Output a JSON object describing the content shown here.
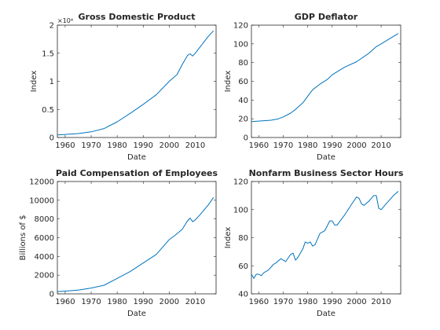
{
  "chart_data": [
    {
      "type": "line",
      "title": "Gross Domestic Product",
      "xlabel": "Date",
      "ylabel": "Index",
      "y_exponent_label": "×10⁴",
      "xlim": [
        1957,
        2018
      ],
      "ylim": [
        0,
        2
      ],
      "xticks": [
        1960,
        1970,
        1980,
        1990,
        2000,
        2010
      ],
      "yticks": [
        0,
        0.5,
        1,
        1.5,
        2
      ],
      "ytick_labels": [
        "0",
        "0.5",
        "1",
        "1.5",
        "2"
      ],
      "color": "#0072bd",
      "series": [
        {
          "x": [
            1957,
            1960,
            1965,
            1970,
            1975,
            1980,
            1985,
            1990,
            1995,
            2000,
            2003,
            2005,
            2007,
            2008,
            2009,
            2010,
            2012,
            2015,
            2017
          ],
          "y": [
            0.045,
            0.055,
            0.07,
            0.1,
            0.16,
            0.28,
            0.43,
            0.59,
            0.76,
            1.0,
            1.12,
            1.3,
            1.46,
            1.49,
            1.45,
            1.5,
            1.62,
            1.8,
            1.9
          ]
        }
      ]
    },
    {
      "type": "line",
      "title": "GDP Deflator",
      "xlabel": "Date",
      "ylabel": "Index",
      "xlim": [
        1957,
        2018
      ],
      "ylim": [
        0,
        120
      ],
      "xticks": [
        1960,
        1970,
        1980,
        1990,
        2000,
        2010
      ],
      "yticks": [
        0,
        20,
        40,
        60,
        80,
        100,
        120
      ],
      "ytick_labels": [
        "0",
        "20",
        "40",
        "60",
        "80",
        "100",
        "120"
      ],
      "color": "#0072bd",
      "series": [
        {
          "x": [
            1957,
            1960,
            1965,
            1968,
            1970,
            1973,
            1975,
            1978,
            1980,
            1982,
            1985,
            1988,
            1990,
            1995,
            2000,
            2005,
            2008,
            2010,
            2015,
            2017
          ],
          "y": [
            17,
            17.5,
            18.5,
            20,
            22,
            26,
            30,
            37,
            44,
            51,
            57,
            62,
            67,
            75,
            81,
            90,
            97,
            100,
            108,
            111
          ]
        }
      ]
    },
    {
      "type": "line",
      "title": "Paid Compensation of Employees",
      "xlabel": "Date",
      "ylabel": "Billions of $",
      "xlim": [
        1957,
        2018
      ],
      "ylim": [
        0,
        12000
      ],
      "xticks": [
        1960,
        1970,
        1980,
        1990,
        2000,
        2010
      ],
      "yticks": [
        0,
        2000,
        4000,
        6000,
        8000,
        10000,
        12000
      ],
      "ytick_labels": [
        "0",
        "2000",
        "4000",
        "6000",
        "8000",
        "10000",
        "12000"
      ],
      "color": "#0072bd",
      "series": [
        {
          "x": [
            1957,
            1960,
            1965,
            1970,
            1975,
            1980,
            1985,
            1990,
            1995,
            2000,
            2002,
            2005,
            2007,
            2008,
            2009,
            2010,
            2012,
            2015,
            2017
          ],
          "y": [
            240,
            290,
            400,
            620,
            920,
            1650,
            2380,
            3300,
            4200,
            5800,
            6200,
            6900,
            7800,
            8100,
            7700,
            7900,
            8500,
            9500,
            10300
          ]
        }
      ]
    },
    {
      "type": "line",
      "title": "Nonfarm Business Sector Hours",
      "xlabel": "Date",
      "ylabel": "Index",
      "xlim": [
        1957,
        2018
      ],
      "ylim": [
        40,
        120
      ],
      "xticks": [
        1960,
        1970,
        1980,
        1990,
        2000,
        2010
      ],
      "yticks": [
        40,
        60,
        80,
        100,
        120
      ],
      "ytick_labels": [
        "40",
        "60",
        "80",
        "100",
        "120"
      ],
      "color": "#0072bd",
      "series": [
        {
          "x": [
            1957,
            1958,
            1959,
            1960,
            1961,
            1962,
            1964,
            1966,
            1967,
            1969,
            1970,
            1971,
            1973,
            1974,
            1975,
            1976,
            1978,
            1979,
            1980,
            1981,
            1982,
            1983,
            1985,
            1987,
            1989,
            1990,
            1991,
            1992,
            1995,
            1998,
            2000,
            2001,
            2002,
            2003,
            2005,
            2007,
            2008,
            2009,
            2010,
            2012,
            2015,
            2017
          ],
          "y": [
            54,
            51,
            54,
            54,
            53,
            55,
            57,
            61,
            62,
            65,
            64,
            63,
            68,
            69,
            64,
            66,
            72,
            77,
            76,
            77,
            74,
            75,
            83,
            85,
            92,
            92,
            89,
            89,
            96,
            104,
            109,
            108,
            104,
            103,
            106,
            110,
            110,
            101,
            100,
            104,
            110,
            113
          ]
        }
      ]
    }
  ]
}
